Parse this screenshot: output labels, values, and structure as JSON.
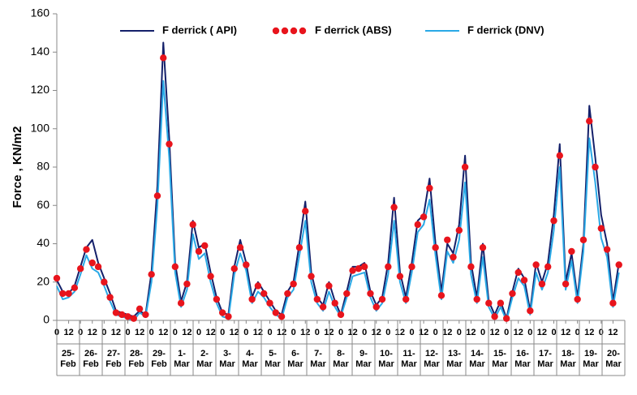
{
  "chart_data": {
    "type": "line",
    "y_label": "Force , KN/m2",
    "legend": "top",
    "x": [
      0,
      6,
      12,
      18,
      24,
      30,
      36,
      42,
      48,
      54,
      60,
      66,
      72,
      78,
      84,
      90,
      96,
      102,
      108,
      114,
      120,
      126,
      132,
      138,
      144,
      150,
      156,
      162,
      168,
      174,
      180,
      186,
      192,
      198,
      204,
      210,
      216,
      222,
      228,
      234,
      240,
      246,
      252,
      258,
      264,
      270,
      276,
      282,
      288,
      294,
      300,
      306,
      312,
      318,
      324,
      330,
      336,
      342,
      348,
      354,
      360,
      366,
      372,
      378,
      384,
      390,
      396,
      402,
      408,
      414,
      420,
      426,
      432,
      438,
      444,
      450,
      456,
      462,
      468,
      474,
      480,
      486,
      492,
      498,
      504,
      510,
      516,
      522,
      528,
      534,
      540,
      546,
      552,
      558,
      564,
      570
    ],
    "xlim": [
      0,
      576
    ],
    "xticks": [
      {
        "value": 0,
        "label": "0"
      },
      {
        "value": 12,
        "label": "12"
      },
      {
        "value": 24,
        "label": "0"
      },
      {
        "value": 36,
        "label": "12"
      },
      {
        "value": 48,
        "label": "0"
      },
      {
        "value": 60,
        "label": "12"
      },
      {
        "value": 72,
        "label": "0"
      },
      {
        "value": 84,
        "label": "12"
      },
      {
        "value": 96,
        "label": "0"
      },
      {
        "value": 108,
        "label": "12"
      },
      {
        "value": 120,
        "label": "0"
      },
      {
        "value": 132,
        "label": "12"
      },
      {
        "value": 144,
        "label": "0"
      },
      {
        "value": 156,
        "label": "12"
      },
      {
        "value": 168,
        "label": "0"
      },
      {
        "value": 180,
        "label": "12"
      },
      {
        "value": 192,
        "label": "0"
      },
      {
        "value": 204,
        "label": "12"
      },
      {
        "value": 216,
        "label": "0"
      },
      {
        "value": 228,
        "label": "12"
      },
      {
        "value": 240,
        "label": "0"
      },
      {
        "value": 252,
        "label": "12"
      },
      {
        "value": 264,
        "label": "0"
      },
      {
        "value": 276,
        "label": "12"
      },
      {
        "value": 288,
        "label": "0"
      },
      {
        "value": 300,
        "label": "12"
      },
      {
        "value": 312,
        "label": "0"
      },
      {
        "value": 324,
        "label": "12"
      },
      {
        "value": 336,
        "label": "0"
      },
      {
        "value": 348,
        "label": "12"
      },
      {
        "value": 360,
        "label": "0"
      },
      {
        "value": 372,
        "label": "12"
      },
      {
        "value": 384,
        "label": "0"
      },
      {
        "value": 396,
        "label": "12"
      },
      {
        "value": 408,
        "label": "0"
      },
      {
        "value": 420,
        "label": "12"
      },
      {
        "value": 432,
        "label": "0"
      },
      {
        "value": 444,
        "label": "12"
      },
      {
        "value": 456,
        "label": "0"
      },
      {
        "value": 468,
        "label": "12"
      },
      {
        "value": 480,
        "label": "0"
      },
      {
        "value": 492,
        "label": "12"
      },
      {
        "value": 504,
        "label": "0"
      },
      {
        "value": 516,
        "label": "12"
      },
      {
        "value": 528,
        "label": "0"
      },
      {
        "value": 540,
        "label": "12"
      },
      {
        "value": 552,
        "label": "0"
      },
      {
        "value": 564,
        "label": "12"
      }
    ],
    "days": [
      "25-Feb",
      "26-Feb",
      "27-Feb",
      "28-Feb",
      "29-Feb",
      "1-Mar",
      "2-Mar",
      "3-Mar",
      "4-Mar",
      "5-Mar",
      "6-Mar",
      "7-Mar",
      "8-Mar",
      "9-Mar",
      "10-Mar",
      "11-Mar",
      "12-Mar",
      "13-Mar",
      "14-Mar",
      "15-Mar",
      "16-Mar",
      "17-Mar",
      "18-Mar",
      "19-Mar",
      "20-Mar"
    ],
    "ylim": [
      0,
      160
    ],
    "yticks": [
      0,
      20,
      40,
      60,
      80,
      100,
      120,
      140,
      160
    ],
    "series": [
      {
        "name": "F derrick ( API)",
        "color": "#14206a",
        "style": "line",
        "values": [
          21,
          15,
          14,
          18,
          28,
          38,
          42,
          30,
          22,
          14,
          5,
          4,
          3,
          2,
          5,
          3,
          25,
          70,
          145,
          95,
          30,
          10,
          20,
          52,
          38,
          40,
          25,
          12,
          4,
          3,
          28,
          42,
          30,
          12,
          20,
          15,
          10,
          5,
          3,
          15,
          20,
          40,
          62,
          25,
          12,
          8,
          20,
          10,
          3,
          15,
          28,
          28,
          30,
          15,
          8,
          12,
          30,
          64,
          25,
          12,
          30,
          52,
          55,
          74,
          40,
          15,
          40,
          35,
          50,
          86,
          30,
          12,
          40,
          10,
          3,
          10,
          1,
          15,
          27,
          22,
          5,
          30,
          20,
          30,
          55,
          92,
          20,
          35,
          12,
          40,
          112,
          85,
          55,
          40,
          10,
          30
        ]
      },
      {
        "name": "F derrick  (ABS)",
        "color": "#e8141c",
        "style": "markers",
        "values": [
          22,
          14,
          14,
          17,
          27,
          37,
          30,
          28,
          20,
          12,
          4,
          3,
          2,
          1,
          6,
          3,
          24,
          65,
          137,
          92,
          28,
          9,
          19,
          50,
          36,
          39,
          23,
          11,
          4,
          2,
          27,
          38,
          29,
          11,
          18,
          14,
          9,
          4,
          2,
          14,
          19,
          38,
          57,
          23,
          11,
          7,
          18,
          9,
          3,
          14,
          26,
          27,
          28,
          14,
          7,
          11,
          28,
          59,
          23,
          11,
          28,
          50,
          54,
          69,
          38,
          13,
          42,
          33,
          47,
          80,
          28,
          11,
          38,
          9,
          2,
          9,
          1,
          14,
          25,
          21,
          5,
          29,
          19,
          28,
          52,
          86,
          19,
          36,
          11,
          42,
          104,
          80,
          48,
          37,
          9,
          29
        ]
      },
      {
        "name": "F derrick (DNV)",
        "color": "#2aa9e6",
        "style": "line",
        "values": [
          18,
          11,
          12,
          15,
          24,
          34,
          27,
          25,
          18,
          10,
          3,
          2,
          1,
          0,
          4,
          2,
          20,
          60,
          125,
          85,
          25,
          7,
          16,
          45,
          32,
          35,
          20,
          9,
          2,
          1,
          24,
          35,
          26,
          9,
          15,
          12,
          7,
          3,
          1,
          12,
          16,
          34,
          52,
          20,
          9,
          5,
          15,
          7,
          2,
          12,
          23,
          24,
          25,
          12,
          5,
          9,
          24,
          52,
          20,
          9,
          25,
          46,
          50,
          63,
          34,
          11,
          36,
          30,
          42,
          72,
          24,
          9,
          33,
          7,
          1,
          7,
          0,
          12,
          22,
          18,
          3,
          25,
          16,
          25,
          47,
          80,
          16,
          31,
          9,
          36,
          95,
          72,
          43,
          33,
          7,
          25
        ]
      }
    ]
  }
}
